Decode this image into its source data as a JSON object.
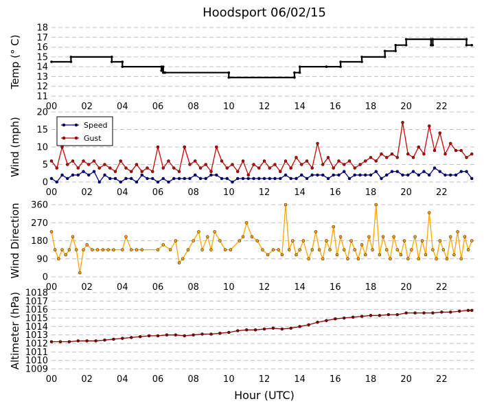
{
  "title": "Hoodsport 06/02/15",
  "xlabel": "Hour (UTC)",
  "x_ticks": [
    "00",
    "02",
    "04",
    "06",
    "08",
    "10",
    "12",
    "14",
    "16",
    "18",
    "20",
    "22"
  ],
  "colors": {
    "temp": "#000000",
    "speed": "#00008b",
    "gust": "#cc0000",
    "direction": "#ffa500",
    "altimeter": "#8b0000",
    "grid": "#bfbfbf"
  },
  "chart_data": [
    {
      "type": "line",
      "ylabel": "Temp ($^\\circ$C)",
      "ylabel_display": "Temp (° C)",
      "ylim": [
        11,
        18
      ],
      "y_ticks": [
        11,
        12,
        13,
        14,
        15,
        16,
        17,
        18
      ],
      "xlim": [
        0,
        24
      ],
      "grid": "horizontal dashed",
      "series": [
        {
          "x": [
            0,
            1.1,
            1.1,
            3.4,
            3.4,
            4.0,
            4.0,
            6.2,
            6.2,
            6.3,
            6.3,
            6.4,
            6.4,
            10.0,
            10.0,
            13.7,
            13.7,
            14.0,
            14.0,
            15.5,
            15.5,
            16.3,
            16.3,
            17.5,
            17.5,
            18.8,
            18.8,
            19.4,
            19.4,
            20.0,
            20.0,
            21.4,
            21.4,
            21.5,
            21.5,
            23.4,
            23.4,
            23.7
          ],
          "y": [
            14.5,
            14.5,
            15.0,
            15.0,
            14.5,
            14.5,
            14.0,
            14.0,
            13.6,
            14.0,
            13.4,
            13.4,
            13.4,
            13.4,
            12.9,
            12.9,
            13.4,
            13.4,
            14.0,
            14.0,
            14.0,
            14.0,
            14.5,
            14.5,
            15.0,
            15.0,
            15.6,
            15.6,
            16.2,
            16.2,
            16.8,
            16.8,
            16.2,
            16.2,
            16.8,
            16.8,
            16.2,
            16.2
          ]
        }
      ]
    },
    {
      "type": "line",
      "ylabel": "Wind (mph)",
      "ylim": [
        0,
        20
      ],
      "y_ticks": [
        0,
        5,
        10,
        15,
        20
      ],
      "xlim": [
        0,
        24
      ],
      "legend_position": "top-left",
      "grid": "horizontal dashed",
      "series": [
        {
          "name": "Speed",
          "x": [
            0,
            0.3,
            0.6,
            0.9,
            1.2,
            1.5,
            1.8,
            2.1,
            2.4,
            2.7,
            3.0,
            3.3,
            3.6,
            3.9,
            4.2,
            4.5,
            4.8,
            5.1,
            5.4,
            5.7,
            6.0,
            6.3,
            6.6,
            6.9,
            7.2,
            7.5,
            7.8,
            8.1,
            8.4,
            8.7,
            9.0,
            9.3,
            9.6,
            9.9,
            10.2,
            10.5,
            10.8,
            11.1,
            11.4,
            11.7,
            12.0,
            12.3,
            12.6,
            12.9,
            13.2,
            13.5,
            13.8,
            14.1,
            14.4,
            14.7,
            15.0,
            15.3,
            15.6,
            15.9,
            16.2,
            16.5,
            16.8,
            17.1,
            17.4,
            17.7,
            18.0,
            18.3,
            18.6,
            18.9,
            19.2,
            19.5,
            19.8,
            20.1,
            20.4,
            20.7,
            21.0,
            21.3,
            21.6,
            21.9,
            22.2,
            22.5,
            22.8,
            23.1,
            23.4,
            23.7
          ],
          "y": [
            1,
            0,
            2,
            1,
            2,
            2,
            3,
            2,
            3,
            0,
            2,
            1,
            1,
            0,
            1,
            1,
            0,
            2,
            1,
            1,
            0,
            1,
            0,
            1,
            1,
            1,
            1,
            2,
            1,
            1,
            2,
            2,
            1,
            1,
            0,
            1,
            1,
            1,
            1,
            1,
            1,
            1,
            1,
            1,
            2,
            1,
            1,
            2,
            1,
            2,
            2,
            2,
            1,
            2,
            2,
            3,
            1,
            2,
            2,
            2,
            2,
            3,
            1,
            2,
            3,
            3,
            2,
            2,
            3,
            2,
            3,
            2,
            4,
            3,
            2,
            2,
            2,
            3,
            3,
            1
          ]
        },
        {
          "name": "Gust",
          "x": [
            0,
            0.3,
            0.6,
            0.9,
            1.2,
            1.5,
            1.8,
            2.1,
            2.4,
            2.7,
            3.0,
            3.3,
            3.6,
            3.9,
            4.2,
            4.5,
            4.8,
            5.1,
            5.4,
            5.7,
            6.0,
            6.3,
            6.6,
            6.9,
            7.2,
            7.5,
            7.8,
            8.1,
            8.4,
            8.7,
            9.0,
            9.3,
            9.6,
            9.9,
            10.2,
            10.5,
            10.8,
            11.1,
            11.4,
            11.7,
            12.0,
            12.3,
            12.6,
            12.9,
            13.2,
            13.5,
            13.8,
            14.1,
            14.4,
            14.7,
            15.0,
            15.3,
            15.6,
            15.9,
            16.2,
            16.5,
            16.8,
            17.1,
            17.4,
            17.7,
            18.0,
            18.3,
            18.6,
            18.9,
            19.2,
            19.5,
            19.8,
            20.1,
            20.4,
            20.7,
            21.0,
            21.3,
            21.6,
            21.9,
            22.2,
            22.5,
            22.8,
            23.1,
            23.4,
            23.7
          ],
          "y": [
            6,
            4,
            10,
            5,
            6,
            4,
            6,
            5,
            6,
            4,
            5,
            4,
            3,
            6,
            4,
            3,
            5,
            3,
            4,
            3,
            10,
            4,
            6,
            4,
            3,
            10,
            5,
            6,
            4,
            5,
            3,
            10,
            6,
            4,
            5,
            3,
            6,
            2,
            5,
            4,
            6,
            4,
            5,
            3,
            6,
            4,
            7,
            5,
            6,
            4,
            11,
            5,
            7,
            4,
            6,
            5,
            6,
            4,
            5,
            6,
            7,
            6,
            8,
            7,
            8,
            7,
            17,
            8,
            7,
            10,
            8,
            16,
            9,
            14,
            8,
            11,
            9,
            9,
            7,
            8
          ]
        }
      ]
    },
    {
      "type": "line",
      "ylabel": "Wind Direction",
      "ylim": [
        0,
        360
      ],
      "y_ticks": [
        0,
        90,
        180,
        270,
        360
      ],
      "xlim": [
        0,
        24
      ],
      "grid": "horizontal dashed",
      "series": [
        {
          "x": [
            0,
            0.2,
            0.4,
            0.6,
            0.8,
            1.0,
            1.2,
            1.4,
            1.6,
            1.8,
            2.0,
            2.3,
            2.6,
            2.9,
            3.2,
            3.5,
            4.0,
            4.2,
            4.5,
            4.8,
            5.1,
            6.0,
            6.3,
            6.7,
            7.0,
            7.2,
            7.4,
            7.7,
            8.0,
            8.3,
            8.5,
            8.8,
            9.0,
            9.2,
            9.5,
            9.8,
            10.1,
            10.6,
            10.8,
            11.0,
            11.3,
            11.6,
            11.9,
            12.2,
            12.5,
            12.8,
            13.0,
            13.2,
            13.4,
            13.6,
            13.8,
            14.0,
            14.2,
            14.5,
            14.7,
            14.9,
            15.1,
            15.3,
            15.5,
            15.7,
            15.9,
            16.1,
            16.3,
            16.5,
            16.7,
            16.9,
            17.1,
            17.3,
            17.5,
            17.7,
            17.9,
            18.1,
            18.3,
            18.5,
            18.7,
            18.9,
            19.1,
            19.3,
            19.5,
            19.7,
            19.9,
            20.1,
            20.3,
            20.5,
            20.7,
            20.9,
            21.1,
            21.3,
            21.5,
            21.7,
            21.9,
            22.1,
            22.3,
            22.5,
            22.7,
            22.9,
            23.1,
            23.3,
            23.5,
            23.7
          ],
          "y": [
            225,
            135,
            90,
            135,
            110,
            135,
            200,
            135,
            20,
            135,
            160,
            135,
            135,
            135,
            135,
            135,
            135,
            200,
            135,
            135,
            135,
            135,
            160,
            135,
            180,
            70,
            90,
            135,
            180,
            225,
            135,
            200,
            135,
            225,
            180,
            135,
            135,
            180,
            200,
            270,
            200,
            180,
            135,
            110,
            135,
            135,
            110,
            360,
            135,
            180,
            110,
            135,
            180,
            90,
            135,
            225,
            135,
            90,
            180,
            135,
            250,
            110,
            200,
            135,
            90,
            180,
            135,
            90,
            160,
            110,
            200,
            135,
            360,
            110,
            200,
            135,
            90,
            200,
            135,
            110,
            180,
            90,
            135,
            200,
            90,
            180,
            110,
            320,
            135,
            90,
            180,
            135,
            90,
            200,
            110,
            225,
            90,
            200,
            135,
            180
          ]
        }
      ]
    },
    {
      "type": "line",
      "ylabel": "Altimeter (hPa)",
      "ylim": [
        1009,
        1018
      ],
      "y_ticks": [
        1009,
        1010,
        1011,
        1012,
        1013,
        1014,
        1015,
        1016,
        1017,
        1018
      ],
      "xlim": [
        0,
        24
      ],
      "grid": "horizontal dashed",
      "series": [
        {
          "x": [
            0,
            0.5,
            1,
            1.5,
            2,
            2.5,
            3,
            3.5,
            4,
            4.5,
            5,
            5.5,
            6,
            6.5,
            7,
            7.5,
            8,
            8.5,
            9,
            9.5,
            10,
            10.5,
            11,
            11.5,
            12,
            12.5,
            13,
            13.5,
            14,
            14.5,
            15,
            15.5,
            16,
            16.5,
            17,
            17.5,
            18,
            18.5,
            19,
            19.5,
            20,
            20.5,
            21,
            21.5,
            22,
            22.5,
            23,
            23.5,
            23.7
          ],
          "y": [
            1012.2,
            1012.2,
            1012.2,
            1012.3,
            1012.3,
            1012.3,
            1012.4,
            1012.5,
            1012.6,
            1012.7,
            1012.8,
            1012.9,
            1012.9,
            1013.0,
            1013.0,
            1012.9,
            1013.0,
            1013.1,
            1013.1,
            1013.2,
            1013.3,
            1013.5,
            1013.6,
            1013.6,
            1013.7,
            1013.8,
            1013.7,
            1013.8,
            1014.0,
            1014.2,
            1014.5,
            1014.7,
            1014.9,
            1015.0,
            1015.1,
            1015.2,
            1015.3,
            1015.3,
            1015.4,
            1015.4,
            1015.6,
            1015.6,
            1015.6,
            1015.6,
            1015.7,
            1015.7,
            1015.8,
            1015.9,
            1015.9
          ]
        }
      ]
    }
  ]
}
